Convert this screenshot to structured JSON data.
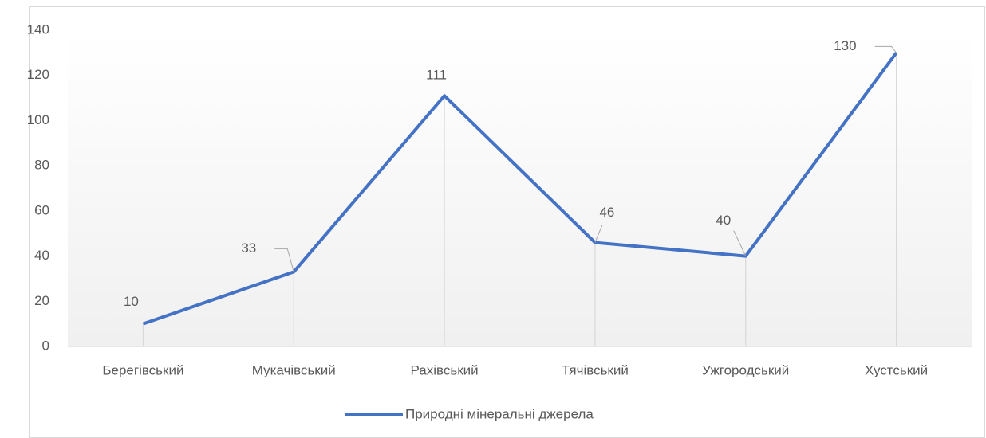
{
  "chart_data": {
    "type": "line",
    "categories": [
      "Берегівський",
      "Мукачівський",
      "Рахівський",
      "Тячівський",
      "Ужгородський",
      "Хустський"
    ],
    "series": [
      {
        "name": "Природні мінеральні джерела",
        "color": "#4472c4",
        "values": [
          10,
          33,
          111,
          46,
          40,
          130
        ]
      }
    ],
    "ylim": [
      0,
      140
    ],
    "yticks": [
      0,
      20,
      40,
      60,
      80,
      100,
      120,
      140
    ],
    "grid": false,
    "drop_lines": true,
    "data_labels": true,
    "legend": "bottom"
  }
}
